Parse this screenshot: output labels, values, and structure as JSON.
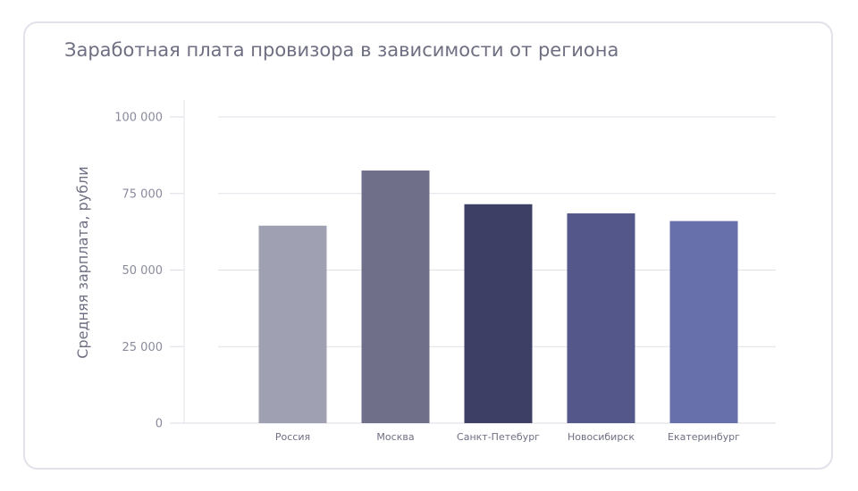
{
  "chart_data": {
    "type": "bar",
    "title": "Заработная плата провизора в зависимости от региона",
    "xlabel": "",
    "ylabel": "Средняя зарплата, рубли",
    "ylim": [
      0,
      100000
    ],
    "yticks": [
      0,
      25000,
      50000,
      75000,
      100000
    ],
    "ytick_labels": [
      "0",
      "25 000",
      "50 000",
      "75 000",
      "100 000"
    ],
    "grid": true,
    "categories": [
      "Россия",
      "Москва",
      "Санкт-Петебург",
      "Новосибирск",
      "Екатеринбург"
    ],
    "values": [
      64500,
      82500,
      71500,
      68500,
      66000
    ],
    "colors": [
      "#a0a0b3",
      "#6f6f8a",
      "#3e3f64",
      "#535789",
      "#6870ab"
    ]
  }
}
